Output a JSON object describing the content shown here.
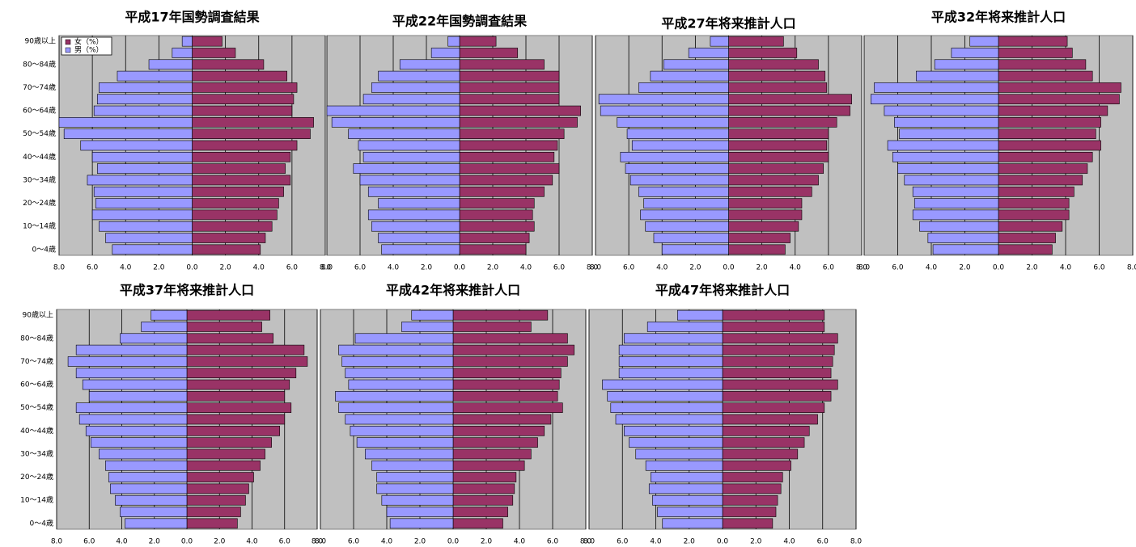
{
  "chart_data": [
    {
      "type": "pyramid",
      "title": "平成17年国勢調査結果",
      "categories": [
        "90歳以上",
        null,
        "80～84歳",
        null,
        "70～74歳",
        null,
        "60～64歳",
        null,
        "50～54歳",
        null,
        "40～44歳",
        null,
        "30～34歳",
        null,
        "20～24歳",
        null,
        "10～14歳",
        null,
        "0～4歳"
      ],
      "series": [
        {
          "name": "女（%）",
          "color": "#993366",
          "values": [
            1.8,
            2.6,
            4.3,
            5.7,
            6.3,
            6.1,
            6.0,
            7.3,
            7.1,
            6.3,
            5.9,
            5.6,
            5.9,
            5.5,
            5.2,
            5.1,
            4.8,
            4.4,
            4.1
          ]
        },
        {
          "name": "男（%）",
          "color": "#9999ff",
          "values": [
            -0.6,
            -1.2,
            -2.6,
            -4.5,
            -5.6,
            -5.7,
            -5.9,
            -8.0,
            -7.7,
            -6.7,
            -6.0,
            -5.7,
            -6.3,
            -5.9,
            -5.8,
            -6.0,
            -5.6,
            -5.2,
            -4.8
          ]
        }
      ],
      "legend": "upper left",
      "grid": true,
      "xlim": [
        -8,
        8
      ],
      "xticks": [
        {
          "value": -8,
          "label": "8.0"
        },
        {
          "value": -6,
          "label": "6.0"
        },
        {
          "value": -4,
          "label": "4.0"
        },
        {
          "value": -2,
          "label": "2.0"
        },
        {
          "value": 0,
          "label": "0.0"
        },
        {
          "value": 2,
          "label": "2.0"
        },
        {
          "value": 4,
          "label": "4.0"
        },
        {
          "value": 6,
          "label": "6.0"
        },
        {
          "value": 8,
          "label": "8.0"
        }
      ]
    },
    {
      "type": "pyramid",
      "title": "平成22年国勢調査結果",
      "series": [
        {
          "color": "#993366",
          "values": [
            2.2,
            3.5,
            5.1,
            6.0,
            6.0,
            6.0,
            7.3,
            7.1,
            6.3,
            5.9,
            5.7,
            6.0,
            5.6,
            5.1,
            4.5,
            4.4,
            4.5,
            4.2,
            4.0
          ]
        },
        {
          "color": "#9999ff",
          "values": [
            -0.7,
            -1.7,
            -3.6,
            -4.9,
            -5.3,
            -5.8,
            -8.0,
            -7.7,
            -6.7,
            -6.1,
            -5.8,
            -6.4,
            -6.0,
            -5.5,
            -4.9,
            -5.5,
            -5.3,
            -4.9,
            -4.7
          ]
        }
      ],
      "grid": true,
      "xlim": [
        -8,
        8
      ],
      "xticks": [
        {
          "value": -8,
          "label": "8.0"
        },
        {
          "value": -6,
          "label": "6.0"
        },
        {
          "value": -4,
          "label": "4.0"
        },
        {
          "value": -2,
          "label": "2.0"
        },
        {
          "value": 0,
          "label": "0.0"
        },
        {
          "value": 2,
          "label": "2.0"
        },
        {
          "value": 4,
          "label": "4.0"
        },
        {
          "value": 6,
          "label": "6.0"
        },
        {
          "value": 8,
          "label": "8.0"
        }
      ]
    },
    {
      "type": "pyramid",
      "title": "平成27年将来推計人口",
      "series": [
        {
          "color": "#993366",
          "values": [
            3.3,
            4.1,
            5.4,
            5.8,
            5.9,
            7.4,
            7.3,
            6.5,
            6.0,
            5.9,
            6.0,
            5.7,
            5.4,
            5.0,
            4.4,
            4.4,
            4.2,
            3.7,
            3.4
          ]
        },
        {
          "color": "#9999ff",
          "values": [
            -1.1,
            -2.4,
            -3.9,
            -4.7,
            -5.4,
            -7.8,
            -7.7,
            -6.7,
            -6.1,
            -5.8,
            -6.5,
            -6.2,
            -5.9,
            -5.4,
            -5.1,
            -5.3,
            -5.0,
            -4.5,
            -4.0
          ]
        }
      ],
      "grid": true,
      "xlim": [
        -8,
        8
      ],
      "xticks": [
        {
          "value": -8,
          "label": "8.0"
        },
        {
          "value": -6,
          "label": "6.0"
        },
        {
          "value": -4,
          "label": "4.0"
        },
        {
          "value": -2,
          "label": "2.0"
        },
        {
          "value": 0,
          "label": "0.0"
        },
        {
          "value": 2,
          "label": "2.0"
        },
        {
          "value": 4,
          "label": "4.0"
        },
        {
          "value": 6,
          "label": "6.0"
        },
        {
          "value": 8,
          "label": "8.0"
        }
      ]
    },
    {
      "type": "pyramid",
      "title": "平成32年将来推計人口",
      "series": [
        {
          "color": "#993366",
          "values": [
            4.1,
            4.4,
            5.2,
            5.6,
            7.3,
            7.2,
            6.5,
            6.1,
            5.8,
            6.1,
            5.6,
            5.3,
            5.0,
            4.5,
            4.2,
            4.2,
            3.8,
            3.4,
            3.2
          ]
        },
        {
          "color": "#9999ff",
          "values": [
            -1.7,
            -2.8,
            -3.8,
            -4.9,
            -7.4,
            -7.6,
            -6.8,
            -6.2,
            -5.9,
            -6.6,
            -6.3,
            -6.0,
            -5.6,
            -5.1,
            -5.0,
            -5.1,
            -4.7,
            -4.2,
            -3.9
          ]
        }
      ],
      "grid": true,
      "xlim": [
        -8,
        8
      ],
      "xticks": [
        {
          "value": -8,
          "label": "8.0"
        },
        {
          "value": -6,
          "label": "6.0"
        },
        {
          "value": -4,
          "label": "4.0"
        },
        {
          "value": -2,
          "label": "2.0"
        },
        {
          "value": 0,
          "label": "0.0"
        },
        {
          "value": 2,
          "label": "2.0"
        },
        {
          "value": 4,
          "label": "4.0"
        },
        {
          "value": 6,
          "label": "6.0"
        },
        {
          "value": 8,
          "label": "8.0"
        }
      ]
    },
    {
      "type": "pyramid",
      "title": "平成37年将来推計人口",
      "categories": [
        "90歳以上",
        null,
        "80～84歳",
        null,
        "70～74歳",
        null,
        "60～64歳",
        null,
        "50～54歳",
        null,
        "40～44歳",
        null,
        "30～34歳",
        null,
        "20～24歳",
        null,
        "10～14歳",
        null,
        "0～4歳"
      ],
      "series": [
        {
          "color": "#993366",
          "values": [
            5.1,
            4.6,
            5.3,
            7.2,
            7.4,
            6.7,
            6.3,
            6.0,
            6.4,
            6.0,
            5.7,
            5.2,
            4.8,
            4.5,
            4.1,
            3.8,
            3.6,
            3.3,
            3.1
          ]
        },
        {
          "color": "#9999ff",
          "values": [
            -2.2,
            -2.8,
            -4.1,
            -6.8,
            -7.3,
            -6.8,
            -6.4,
            -6.0,
            -6.8,
            -6.6,
            -6.2,
            -5.9,
            -5.4,
            -5.0,
            -4.8,
            -4.7,
            -4.4,
            -4.1,
            -3.8
          ]
        }
      ],
      "grid": true,
      "xlim": [
        -8,
        8
      ],
      "xticks": [
        {
          "value": -8,
          "label": "8.0"
        },
        {
          "value": -6,
          "label": "6.0"
        },
        {
          "value": -4,
          "label": "4.0"
        },
        {
          "value": -2,
          "label": "2.0"
        },
        {
          "value": 0,
          "label": "0.0"
        },
        {
          "value": 2,
          "label": "2.0"
        },
        {
          "value": 4,
          "label": "4.0"
        },
        {
          "value": 6,
          "label": "6.0"
        },
        {
          "value": 8,
          "label": "8.0"
        }
      ]
    },
    {
      "type": "pyramid",
      "title": "平成42年将来推計人口",
      "series": [
        {
          "color": "#993366",
          "values": [
            5.7,
            4.7,
            6.9,
            7.3,
            6.9,
            6.5,
            6.4,
            6.3,
            6.6,
            5.9,
            5.5,
            5.1,
            4.7,
            4.3,
            3.8,
            3.7,
            3.6,
            3.3,
            3.0
          ]
        },
        {
          "color": "#9999ff",
          "values": [
            -2.5,
            -3.1,
            -5.9,
            -6.9,
            -6.7,
            -6.5,
            -6.3,
            -7.1,
            -6.9,
            -6.5,
            -6.2,
            -5.8,
            -5.3,
            -4.9,
            -4.6,
            -4.6,
            -4.3,
            -4.0,
            -3.8
          ]
        }
      ],
      "grid": true,
      "xlim": [
        -8,
        8
      ],
      "xticks": [
        {
          "value": -8,
          "label": "8.0"
        },
        {
          "value": -6,
          "label": "6.0"
        },
        {
          "value": -4,
          "label": "4.0"
        },
        {
          "value": -2,
          "label": "2.0"
        },
        {
          "value": 0,
          "label": "0.0"
        },
        {
          "value": 2,
          "label": "2.0"
        },
        {
          "value": 4,
          "label": "4.0"
        },
        {
          "value": 6,
          "label": "6.0"
        },
        {
          "value": 8,
          "label": "8.0"
        }
      ]
    },
    {
      "type": "pyramid",
      "title": "平成47年将来推計人口",
      "series": [
        {
          "color": "#993366",
          "values": [
            6.1,
            6.1,
            6.9,
            6.7,
            6.6,
            6.5,
            6.9,
            6.5,
            6.1,
            5.7,
            5.2,
            4.9,
            4.5,
            4.1,
            3.6,
            3.5,
            3.3,
            3.2,
            3.0
          ]
        },
        {
          "color": "#9999ff",
          "values": [
            -2.7,
            -4.5,
            -5.9,
            -6.2,
            -6.2,
            -6.2,
            -7.2,
            -6.9,
            -6.7,
            -6.4,
            -5.9,
            -5.6,
            -5.2,
            -4.6,
            -4.3,
            -4.4,
            -4.2,
            -3.9,
            -3.6
          ]
        }
      ],
      "grid": true,
      "xlim": [
        -8,
        8
      ],
      "xticks": [
        {
          "value": -8,
          "label": "8.0"
        },
        {
          "value": -6,
          "label": "6.0"
        },
        {
          "value": -4,
          "label": "4.0"
        },
        {
          "value": -2,
          "label": "2.0"
        },
        {
          "value": 0,
          "label": "0.0"
        },
        {
          "value": 2,
          "label": "2.0"
        },
        {
          "value": 4,
          "label": "4.0"
        },
        {
          "value": 6,
          "label": "6.0"
        },
        {
          "value": 8,
          "label": "8.0"
        }
      ]
    }
  ]
}
